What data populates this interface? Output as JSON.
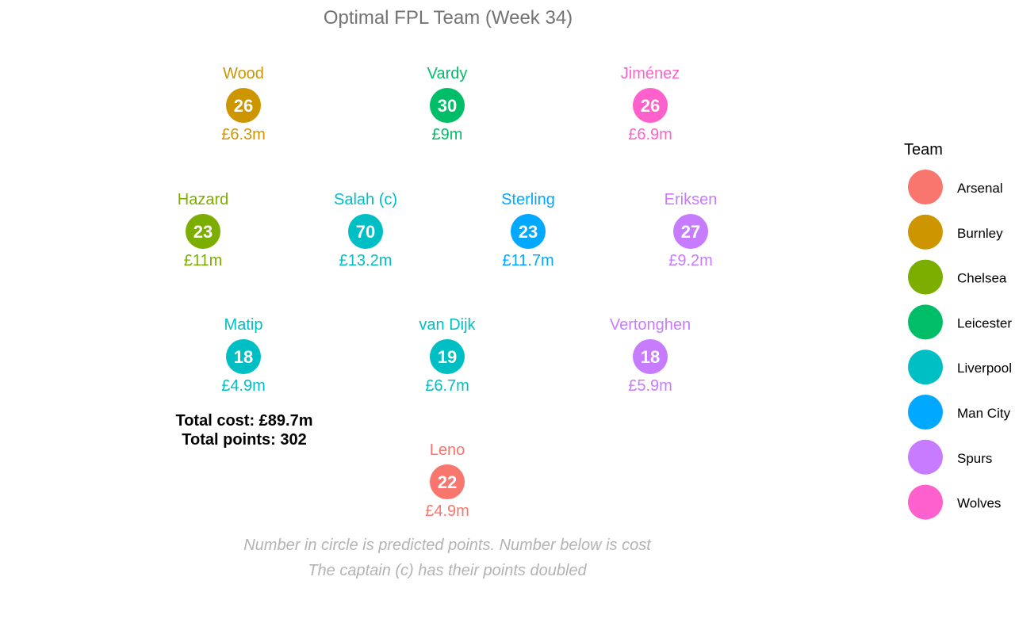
{
  "chart_data": {
    "type": "scatter",
    "title": "Optimal FPL Team (Week 34)",
    "players": [
      {
        "name": "Wood",
        "points": "26",
        "cost": "£6.3m",
        "team": "Burnley",
        "row": 1,
        "col": 1
      },
      {
        "name": "Vardy",
        "points": "30",
        "cost": "£9m",
        "team": "Leicester",
        "row": 1,
        "col": 2
      },
      {
        "name": "Jiménez",
        "points": "26",
        "cost": "£6.9m",
        "team": "Wolves",
        "row": 1,
        "col": 3
      },
      {
        "name": "Hazard",
        "points": "23",
        "cost": "£11m",
        "team": "Chelsea",
        "row": 2,
        "col": 1
      },
      {
        "name": "Salah (c)",
        "points": "70",
        "cost": "£13.2m",
        "team": "Liverpool",
        "row": 2,
        "col": 2
      },
      {
        "name": "Sterling",
        "points": "23",
        "cost": "£11.7m",
        "team": "Man City",
        "row": 2,
        "col": 3
      },
      {
        "name": "Eriksen",
        "points": "27",
        "cost": "£9.2m",
        "team": "Spurs",
        "row": 2,
        "col": 4
      },
      {
        "name": "Matip",
        "points": "18",
        "cost": "£4.9m",
        "team": "Liverpool",
        "row": 3,
        "col": 1
      },
      {
        "name": "van Dijk",
        "points": "19",
        "cost": "£6.7m",
        "team": "Liverpool",
        "row": 3,
        "col": 2
      },
      {
        "name": "Vertonghen",
        "points": "18",
        "cost": "£5.9m",
        "team": "Spurs",
        "row": 3,
        "col": 3
      },
      {
        "name": "Leno",
        "points": "22",
        "cost": "£4.9m",
        "team": "Arsenal",
        "row": 4,
        "col": 1
      }
    ],
    "totals": {
      "cost_line": "Total cost: £89.7m",
      "points_line": "Total points: 302"
    },
    "caption_lines": [
      "Number in circle is predicted points. Number below is cost",
      "The captain (c) has their points doubled"
    ],
    "legend": {
      "title": "Team",
      "placement": "right",
      "entries": [
        {
          "name": "Arsenal",
          "color": "#F8766D"
        },
        {
          "name": "Burnley",
          "color": "#CD9600"
        },
        {
          "name": "Chelsea",
          "color": "#7CAE00"
        },
        {
          "name": "Leicester",
          "color": "#00BE67"
        },
        {
          "name": "Liverpool",
          "color": "#00BFC4"
        },
        {
          "name": "Man City",
          "color": "#00A9FF"
        },
        {
          "name": "Spurs",
          "color": "#C77CFF"
        },
        {
          "name": "Wolves",
          "color": "#FF61CC"
        }
      ]
    },
    "grid": false
  }
}
